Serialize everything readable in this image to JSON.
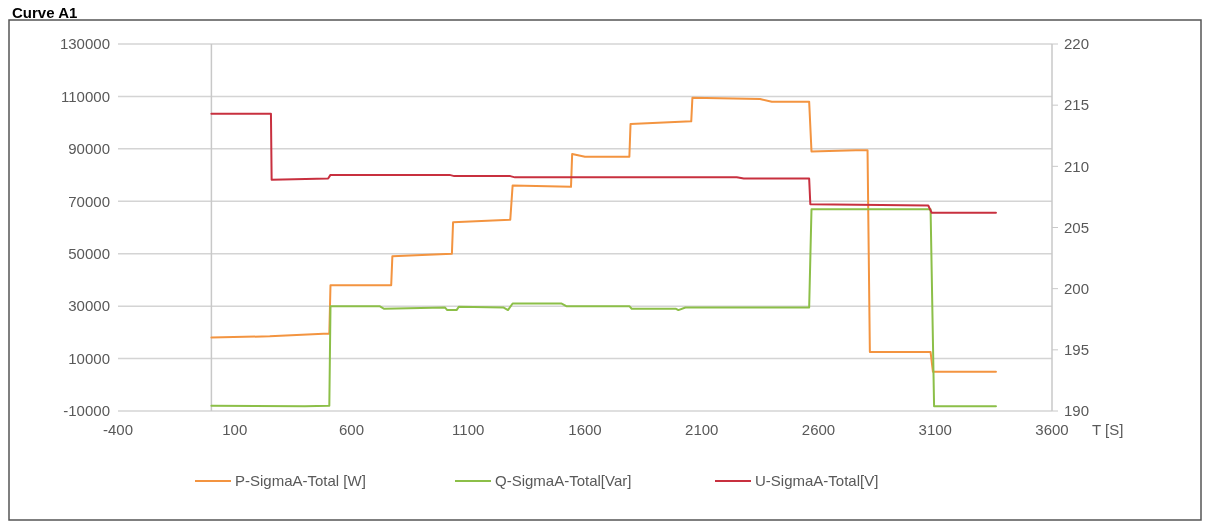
{
  "chart_data": {
    "type": "line",
    "title": "Curve A1",
    "xlabel": "T [S]",
    "xlim": [
      -400,
      3600
    ],
    "xticks": [
      -400,
      100,
      600,
      1100,
      1600,
      2100,
      2600,
      3100,
      3600
    ],
    "ylim": [
      -10000,
      130000
    ],
    "yticks": [
      -10000,
      10000,
      30000,
      50000,
      70000,
      90000,
      110000,
      130000
    ],
    "y2lim": [
      190,
      220
    ],
    "y2ticks": [
      190,
      195,
      200,
      205,
      210,
      215,
      220
    ],
    "grid": "y",
    "legend": "bottom",
    "line_style": "solid",
    "marker": "none",
    "series": [
      {
        "name": "P-SigmaA-Total [W]",
        "color": "#f39440",
        "x": [
          0,
          250,
          480,
          505,
          510,
          770,
          775,
          1030,
          1035,
          1280,
          1290,
          1540,
          1545,
          1600,
          1790,
          1795,
          2055,
          2060,
          2350,
          2400,
          2560,
          2570,
          2760,
          2810,
          2820,
          3080,
          3090,
          3360
        ],
        "values": [
          18000,
          18500,
          19500,
          19500,
          38000,
          38000,
          49000,
          50000,
          62000,
          63000,
          76000,
          75500,
          88000,
          87000,
          87000,
          99500,
          100500,
          109500,
          109000,
          108000,
          108000,
          89000,
          89500,
          89500,
          12500,
          12500,
          5000,
          5000
        ]
      },
      {
        "name": "Q-SigmaA-Total[Var]",
        "color": "#8cbf48",
        "x": [
          0,
          400,
          505,
          510,
          720,
          740,
          1000,
          1010,
          1050,
          1060,
          1250,
          1270,
          1290,
          1500,
          1520,
          1790,
          1800,
          1990,
          2000,
          2030,
          2560,
          2570,
          3080,
          3095,
          3360
        ],
        "values": [
          -8000,
          -8200,
          -8000,
          30000,
          30000,
          29000,
          29500,
          28500,
          28500,
          29800,
          29500,
          28500,
          31000,
          31000,
          30000,
          30000,
          29000,
          29000,
          28500,
          29500,
          29500,
          67000,
          67000,
          -8200,
          -8200
        ]
      },
      {
        "name": "U-SigmaA-Total[V]",
        "color": "#c8303f",
        "axis": "y2",
        "x": [
          0,
          255,
          258,
          500,
          510,
          1020,
          1040,
          1280,
          1300,
          2250,
          2280,
          2560,
          2565,
          3070,
          3085,
          3360
        ],
        "values": [
          214.3,
          214.3,
          208.9,
          209.0,
          209.3,
          209.3,
          209.2,
          209.2,
          209.1,
          209.1,
          209.0,
          209.0,
          206.9,
          206.8,
          206.2,
          206.2
        ]
      }
    ]
  }
}
